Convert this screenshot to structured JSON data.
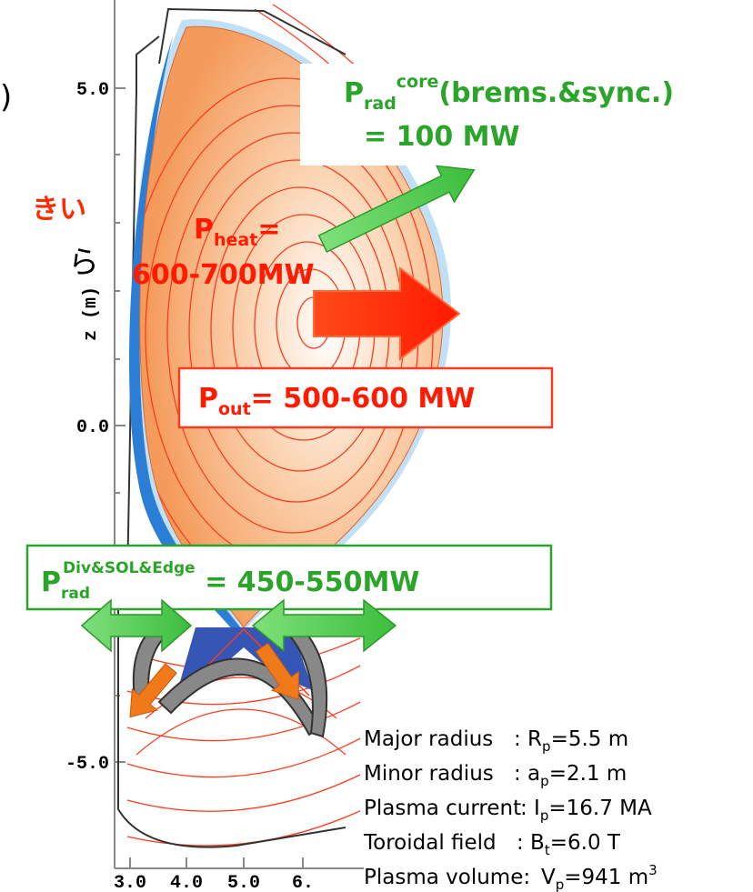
{
  "fragments": {
    "paren": ")",
    "red_text": "きい",
    "black_text": "ら"
  },
  "plot": {
    "y_axis_label": "z (m)",
    "y_ticks": [
      "5.0",
      "0.0",
      "-5.0"
    ],
    "x_ticks": [
      "3.0",
      "4.0",
      "5.0",
      "6."
    ]
  },
  "labels": {
    "core": {
      "main": "P",
      "sub": "rad",
      "sup": "core",
      "rest": "(brems.&sync.)",
      "line2": "= 100 MW"
    },
    "heat": {
      "main": "P",
      "sub": "heat",
      "rest": "=",
      "line2": "600-700MW"
    },
    "out": {
      "main": "P",
      "sub": "out",
      "rest": "= 500-600 MW"
    },
    "div": {
      "main": "P",
      "sub": "rad",
      "sup": "Div&SOL&Edge",
      "rest": " = 450-550MW"
    }
  },
  "parameters": [
    {
      "label": "Major radius",
      "symbol": ": R",
      "sub": "p",
      "value": "=5.5 m"
    },
    {
      "label": "Minor radius",
      "symbol": ": a",
      "sub": "p",
      "value": "=2.1 m"
    },
    {
      "label": "Plasma current",
      "symbol": ": I",
      "sub": "p",
      "value": "=16.7 MA"
    },
    {
      "label": "Toroidal field",
      "symbol": ": B",
      "sub": "t",
      "value": "=6.0 T"
    },
    {
      "label": "Plasma volume:",
      "symbol": "V",
      "sub": "p",
      "value": "=941 m",
      "sup": "3"
    }
  ]
}
